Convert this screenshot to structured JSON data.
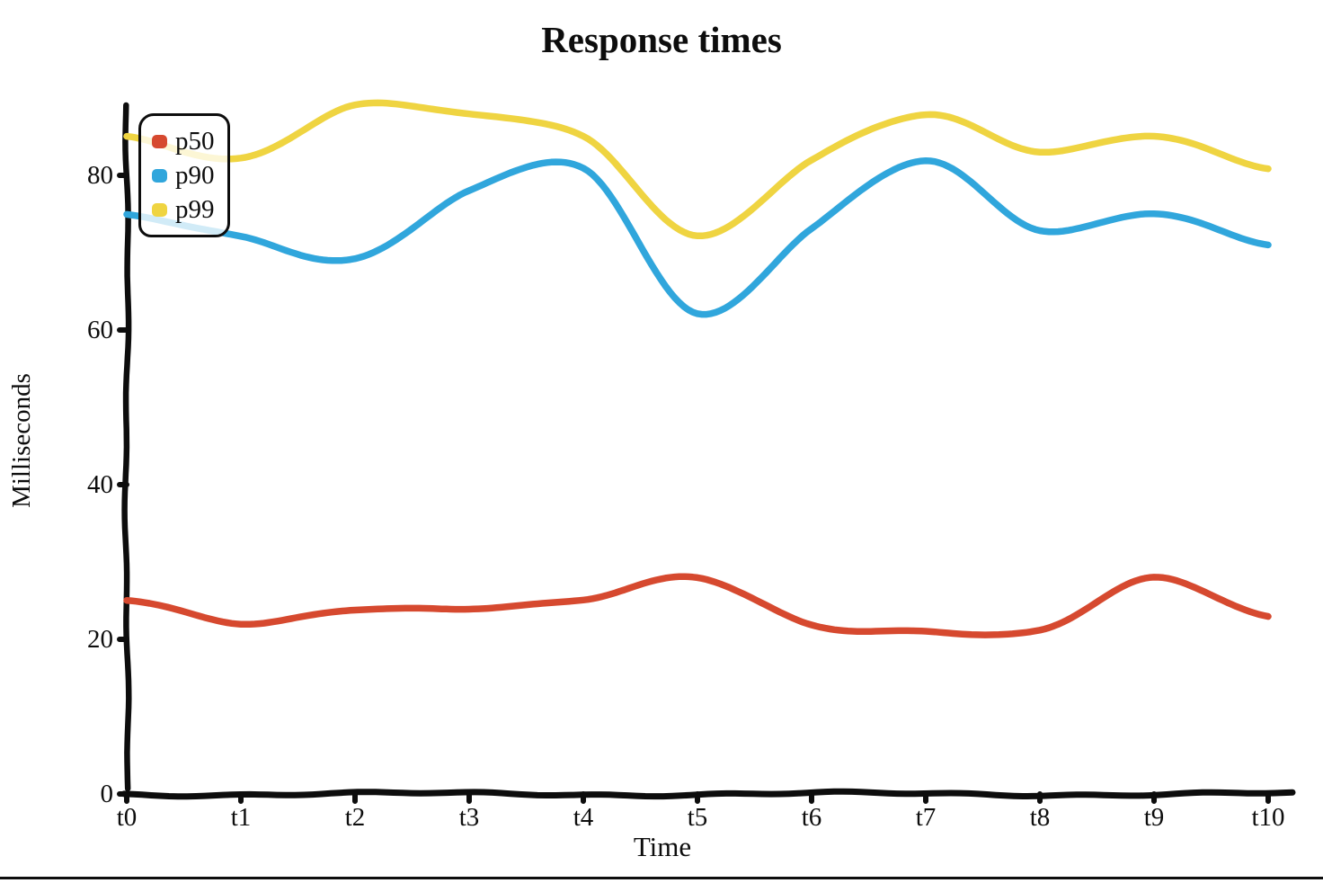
{
  "page": {
    "background": "#ffffff",
    "bottom_border_color": "#0d0d0d"
  },
  "chart_data": {
    "type": "line",
    "style": "hand-drawn-xkcd",
    "title": "Response times",
    "xlabel": "Time",
    "ylabel": "Milliseconds",
    "categories": [
      "t0",
      "t1",
      "t2",
      "t3",
      "t4",
      "t5",
      "t6",
      "t7",
      "t8",
      "t9",
      "t10"
    ],
    "y_ticks": [
      0,
      20,
      40,
      60,
      80
    ],
    "ylim": [
      0,
      92
    ],
    "grid": false,
    "legend_position": "upper-left",
    "axis_color": "#0d0d0d",
    "series": [
      {
        "name": "p50",
        "color": "#d6492f",
        "values": [
          25,
          22,
          24,
          24,
          25,
          28,
          22,
          21,
          21,
          28,
          23
        ]
      },
      {
        "name": "p90",
        "color": "#30a6dc",
        "values": [
          75,
          72,
          69,
          78,
          81,
          62,
          73,
          82,
          73,
          75,
          71
        ]
      },
      {
        "name": "p99",
        "color": "#efd441",
        "values": [
          85,
          82,
          89,
          88,
          85,
          72,
          82,
          88,
          83,
          85,
          81
        ]
      }
    ]
  }
}
